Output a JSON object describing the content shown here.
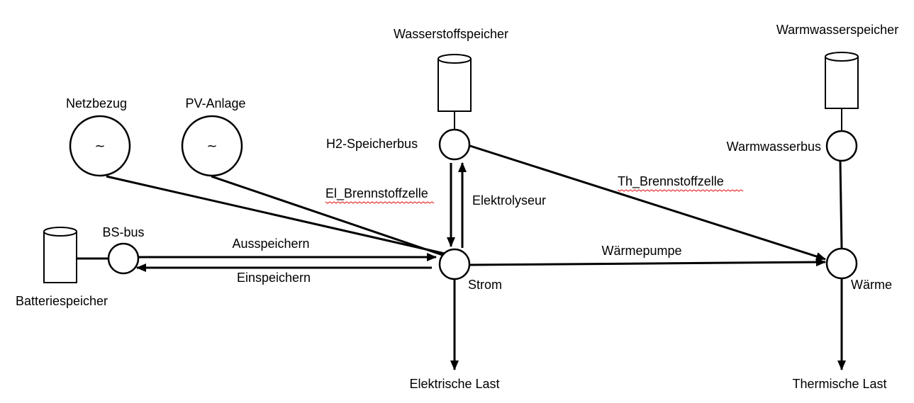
{
  "labels": {
    "wasserstoffspeicher": "Wasserstoffspeicher",
    "warmwasserspeicher": "Warmwasserspeicher",
    "netzbezug": "Netzbezug",
    "pv_anlage": "PV-Anlage",
    "h2_speicherbus": "H2-Speicherbus",
    "warmwasserbus": "Warmwasserbus",
    "el_brennstoffzelle": "El_Brennstoffzelle",
    "elektrolyseur": "Elektrolyseur",
    "th_brennstoffzelle": "Th_Brennstoffzelle",
    "bs_bus": "BS-bus",
    "ausspeichern": "Ausspeichern",
    "einspeichern": "Einspeichern",
    "waermepumpe": "Wärmepumpe",
    "batteriespeicher": "Batteriespeicher",
    "strom": "Strom",
    "waerme": "Wärme",
    "elektrische_last": "Elektrische Last",
    "thermische_last": "Thermische Last"
  },
  "source_symbol": "~"
}
